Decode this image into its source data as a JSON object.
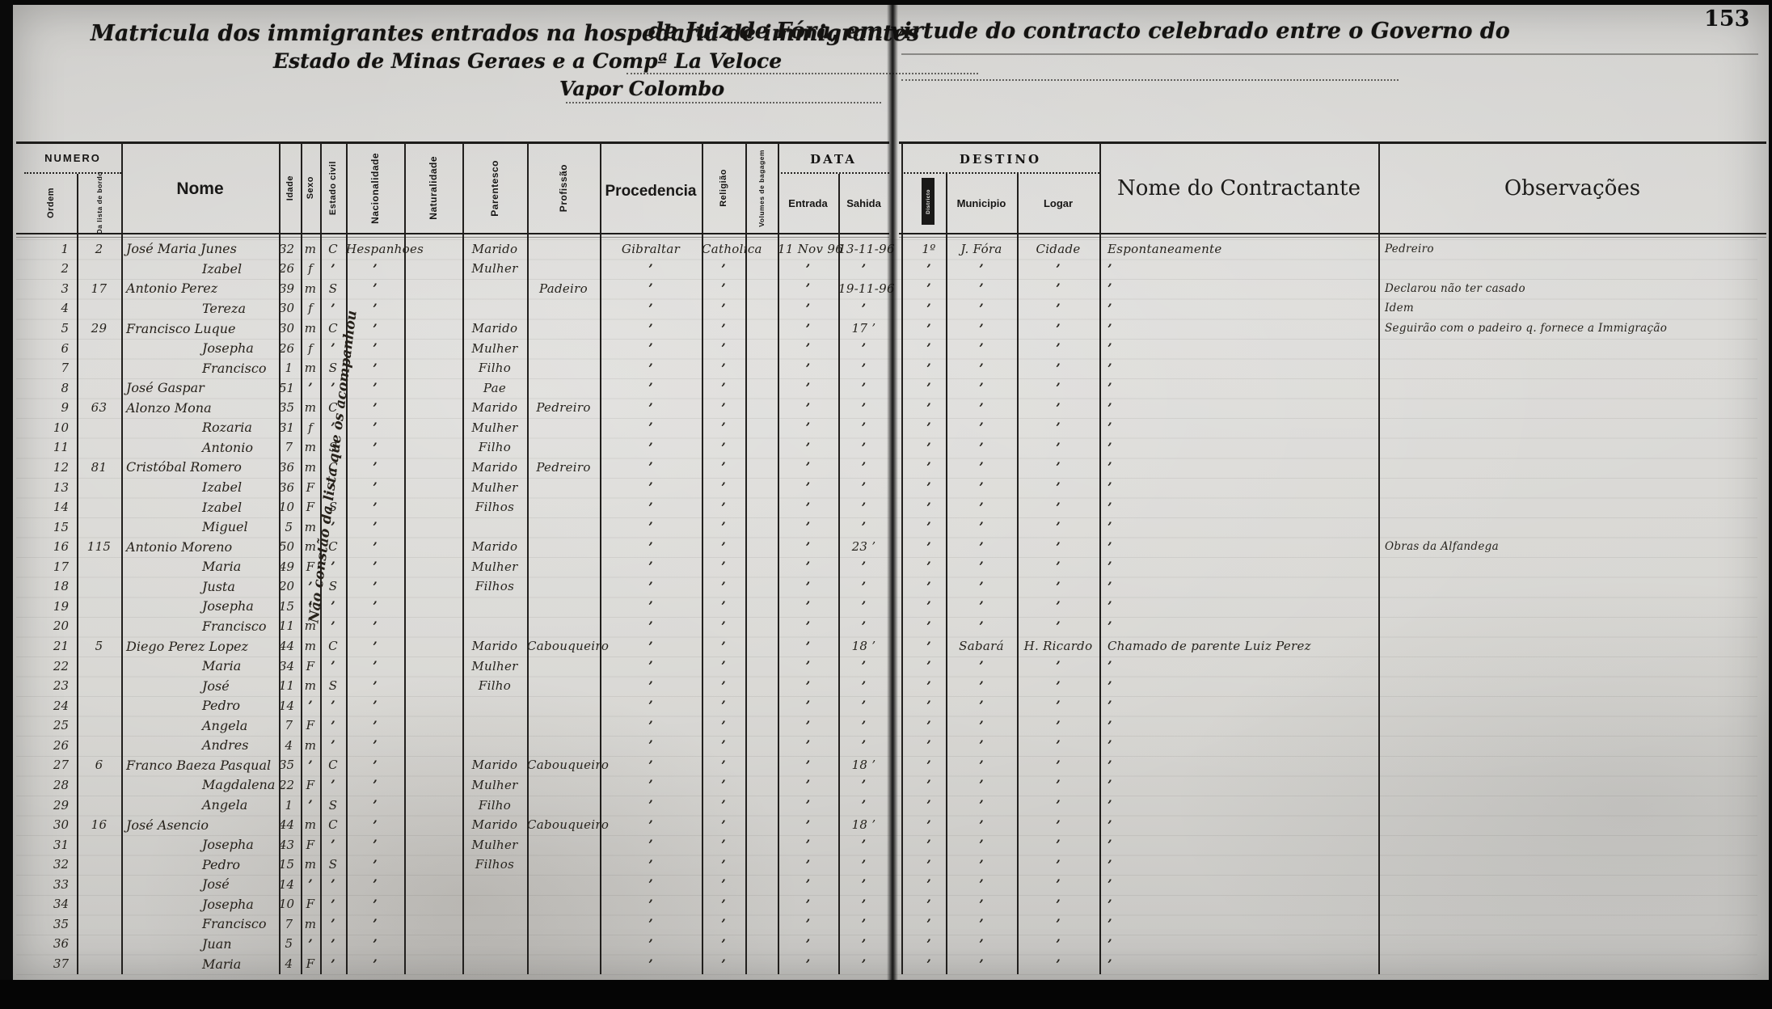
{
  "page": {
    "number": "153"
  },
  "title": {
    "line1_left": "Matricula dos immigrantes entrados na hospedaria de immigrantes",
    "line1_right": "de Juiz de Fóra, em virtude do contracto celebrado entre o Governo do",
    "line2": "Estado de Minas Geraes e a Compª La Veloce",
    "line3": "Vapor Colombo"
  },
  "headers": {
    "numero": "NUMERO",
    "ordem": "Ordem",
    "lista_bordo": "Da lista de bordo",
    "nome": "Nome",
    "idade": "Idade",
    "sexo": "Sexo",
    "estado_civil": "Estado civil",
    "nacionalidade": "Nacionalidade",
    "naturalidade": "Naturalidade",
    "parentesco": "Parentesco",
    "profissao": "Profissão",
    "procedencia": "Procedencia",
    "religiao": "Religião",
    "volumes": "Volumes de bagagem",
    "data": "DATA",
    "entrada": "Entrada",
    "sahida": "Sahida",
    "destino": "DESTINO",
    "districto": "Districto",
    "municipio": "Municipio",
    "logar": "Logar",
    "contractante": "Nome do Contractante",
    "observacoes": "Observações"
  },
  "diagonal_note": "Não constão da lista que os acompanhou",
  "columns_order": [
    "ordem",
    "lista_bordo",
    "nome",
    "indent_flag",
    "idade",
    "sexo",
    "estado_civil",
    "nacionalidade",
    "parentesco",
    "profissao",
    "procedencia",
    "religiao",
    "entrada",
    "sahida",
    "districto",
    "municipio",
    "logar",
    "contractante",
    "observacoes"
  ],
  "rows": [
    [
      "1",
      "2",
      "José Maria Junes",
      0,
      "32",
      "m",
      "C",
      "Hespanhoes",
      "Marido",
      "",
      "Gibraltar",
      "Catholica",
      "11 Nov 96",
      "13-11-96",
      "1º",
      "J. Fóra",
      "Cidade",
      "Espontaneamente",
      "Pedreiro"
    ],
    [
      "2",
      "",
      "Izabel",
      1,
      "26",
      "f",
      "’",
      "’",
      "Mulher",
      "",
      "’",
      "’",
      "’",
      "’",
      "’",
      "’",
      "’",
      "’",
      ""
    ],
    [
      "3",
      "17",
      "Antonio Perez",
      0,
      "39",
      "m",
      "S",
      "’",
      "",
      "Padeiro",
      "’",
      "’",
      "’",
      "19-11-96",
      "’",
      "’",
      "’",
      "’",
      "Declarou não ter casado"
    ],
    [
      "4",
      "",
      "Tereza",
      1,
      "30",
      "f",
      "’",
      "’",
      "",
      "",
      "’",
      "’",
      "’",
      "’",
      "’",
      "’",
      "’",
      "’",
      "Idem"
    ],
    [
      "5",
      "29",
      "Francisco Luque",
      0,
      "30",
      "m",
      "C",
      "’",
      "Marido",
      "",
      "’",
      "’",
      "’",
      "17 ’",
      "’",
      "’",
      "’",
      "’",
      "Seguirão com o padeiro q. fornece a Immigração"
    ],
    [
      "6",
      "",
      "Josepha",
      1,
      "26",
      "f",
      "’",
      "’",
      "Mulher",
      "",
      "’",
      "’",
      "’",
      "’",
      "’",
      "’",
      "’",
      "’",
      ""
    ],
    [
      "7",
      "",
      "Francisco",
      1,
      "1",
      "m",
      "S",
      "’",
      "Filho",
      "",
      "’",
      "’",
      "’",
      "’",
      "’",
      "’",
      "’",
      "’",
      ""
    ],
    [
      "8",
      "",
      "José Gaspar",
      0,
      "51",
      "’",
      "’",
      "’",
      "Pae",
      "",
      "’",
      "’",
      "’",
      "’",
      "’",
      "’",
      "’",
      "’",
      ""
    ],
    [
      "9",
      "63",
      "Alonzo Mona",
      0,
      "35",
      "m",
      "C",
      "’",
      "Marido",
      "Pedreiro",
      "’",
      "’",
      "’",
      "’",
      "’",
      "’",
      "’",
      "’",
      ""
    ],
    [
      "10",
      "",
      "Rozaria",
      1,
      "31",
      "f",
      "’",
      "’",
      "Mulher",
      "",
      "’",
      "’",
      "’",
      "’",
      "’",
      "’",
      "’",
      "’",
      ""
    ],
    [
      "11",
      "",
      "Antonio",
      1,
      "7",
      "m",
      "S",
      "’",
      "Filho",
      "",
      "’",
      "’",
      "’",
      "’",
      "’",
      "’",
      "’",
      "’",
      ""
    ],
    [
      "12",
      "81",
      "Cristóbal Romero",
      0,
      "36",
      "m",
      "C",
      "’",
      "Marido",
      "Pedreiro",
      "’",
      "’",
      "’",
      "’",
      "’",
      "’",
      "’",
      "’",
      ""
    ],
    [
      "13",
      "",
      "Izabel",
      1,
      "36",
      "F",
      "’",
      "’",
      "Mulher",
      "",
      "’",
      "’",
      "’",
      "’",
      "’",
      "’",
      "’",
      "’",
      ""
    ],
    [
      "14",
      "",
      "Izabel",
      1,
      "10",
      "F",
      "S",
      "’",
      "Filhos",
      "",
      "’",
      "’",
      "’",
      "’",
      "’",
      "’",
      "’",
      "’",
      ""
    ],
    [
      "15",
      "",
      "Miguel",
      1,
      "5",
      "m",
      "’",
      "’",
      "",
      "",
      "’",
      "’",
      "’",
      "’",
      "’",
      "’",
      "’",
      "’",
      ""
    ],
    [
      "16",
      "115",
      "Antonio Moreno",
      0,
      "50",
      "m",
      "C",
      "’",
      "Marido",
      "",
      "’",
      "’",
      "’",
      "23 ’",
      "’",
      "’",
      "’",
      "’",
      "Obras da Alfandega"
    ],
    [
      "17",
      "",
      "Maria",
      1,
      "49",
      "F",
      "’",
      "’",
      "Mulher",
      "",
      "’",
      "’",
      "’",
      "’",
      "’",
      "’",
      "’",
      "’",
      ""
    ],
    [
      "18",
      "",
      "Justa",
      1,
      "20",
      "’",
      "S",
      "’",
      "Filhos",
      "",
      "’",
      "’",
      "’",
      "’",
      "’",
      "’",
      "’",
      "’",
      ""
    ],
    [
      "19",
      "",
      "Josepha",
      1,
      "15",
      "’",
      "’",
      "’",
      "",
      "",
      "’",
      "’",
      "’",
      "’",
      "’",
      "’",
      "’",
      "’",
      ""
    ],
    [
      "20",
      "",
      "Francisco",
      1,
      "11",
      "m",
      "’",
      "’",
      "",
      "",
      "’",
      "’",
      "’",
      "’",
      "’",
      "’",
      "’",
      "’",
      ""
    ],
    [
      "21",
      "5",
      "Diego Perez Lopez",
      0,
      "44",
      "m",
      "C",
      "’",
      "Marido",
      "Cabouqueiro",
      "’",
      "’",
      "’",
      "18 ’",
      "’",
      "Sabará",
      "H. Ricardo",
      "Chamado de parente Luiz Perez",
      ""
    ],
    [
      "22",
      "",
      "Maria",
      1,
      "34",
      "F",
      "’",
      "’",
      "Mulher",
      "",
      "’",
      "’",
      "’",
      "’",
      "’",
      "’",
      "’",
      "’",
      ""
    ],
    [
      "23",
      "",
      "José",
      1,
      "11",
      "m",
      "S",
      "’",
      "Filho",
      "",
      "’",
      "’",
      "’",
      "’",
      "’",
      "’",
      "’",
      "’",
      ""
    ],
    [
      "24",
      "",
      "Pedro",
      1,
      "14",
      "’",
      "’",
      "’",
      "",
      "",
      "’",
      "’",
      "’",
      "’",
      "’",
      "’",
      "’",
      "’",
      ""
    ],
    [
      "25",
      "",
      "Angela",
      1,
      "7",
      "F",
      "’",
      "’",
      "",
      "",
      "’",
      "’",
      "’",
      "’",
      "’",
      "’",
      "’",
      "’",
      ""
    ],
    [
      "26",
      "",
      "Andres",
      1,
      "4",
      "m",
      "’",
      "’",
      "",
      "",
      "’",
      "’",
      "’",
      "’",
      "’",
      "’",
      "’",
      "’",
      ""
    ],
    [
      "27",
      "6",
      "Franco Baeza Pasqual",
      0,
      "35",
      "’",
      "C",
      "’",
      "Marido",
      "Cabouqueiro",
      "’",
      "’",
      "’",
      "18 ’",
      "’",
      "’",
      "’",
      "’",
      ""
    ],
    [
      "28",
      "",
      "Magdalena",
      1,
      "22",
      "F",
      "’",
      "’",
      "Mulher",
      "",
      "’",
      "’",
      "’",
      "’",
      "’",
      "’",
      "’",
      "’",
      ""
    ],
    [
      "29",
      "",
      "Angela",
      1,
      "1",
      "’",
      "S",
      "’",
      "Filho",
      "",
      "’",
      "’",
      "’",
      "’",
      "’",
      "’",
      "’",
      "’",
      ""
    ],
    [
      "30",
      "16",
      "José Asencio",
      0,
      "44",
      "m",
      "C",
      "’",
      "Marido",
      "Cabouqueiro",
      "’",
      "’",
      "’",
      "18 ’",
      "’",
      "’",
      "’",
      "’",
      ""
    ],
    [
      "31",
      "",
      "Josepha",
      1,
      "43",
      "F",
      "’",
      "’",
      "Mulher",
      "",
      "’",
      "’",
      "’",
      "’",
      "’",
      "’",
      "’",
      "’",
      ""
    ],
    [
      "32",
      "",
      "Pedro",
      1,
      "15",
      "m",
      "S",
      "’",
      "Filhos",
      "",
      "’",
      "’",
      "’",
      "’",
      "’",
      "’",
      "’",
      "’",
      ""
    ],
    [
      "33",
      "",
      "José",
      1,
      "14",
      "’",
      "’",
      "’",
      "",
      "",
      "’",
      "’",
      "’",
      "’",
      "’",
      "’",
      "’",
      "’",
      ""
    ],
    [
      "34",
      "",
      "Josepha",
      1,
      "10",
      "F",
      "’",
      "’",
      "",
      "",
      "’",
      "’",
      "’",
      "’",
      "’",
      "’",
      "’",
      "’",
      ""
    ],
    [
      "35",
      "",
      "Francisco",
      1,
      "7",
      "m",
      "’",
      "’",
      "",
      "",
      "’",
      "’",
      "’",
      "’",
      "’",
      "’",
      "’",
      "’",
      ""
    ],
    [
      "36",
      "",
      "Juan",
      1,
      "5",
      "’",
      "’",
      "’",
      "",
      "",
      "’",
      "’",
      "’",
      "’",
      "’",
      "’",
      "’",
      "’",
      ""
    ],
    [
      "37",
      "",
      "Maria",
      1,
      "4",
      "F",
      "’",
      "’",
      "",
      "",
      "’",
      "’",
      "’",
      "’",
      "’",
      "’",
      "’",
      "’",
      ""
    ]
  ]
}
